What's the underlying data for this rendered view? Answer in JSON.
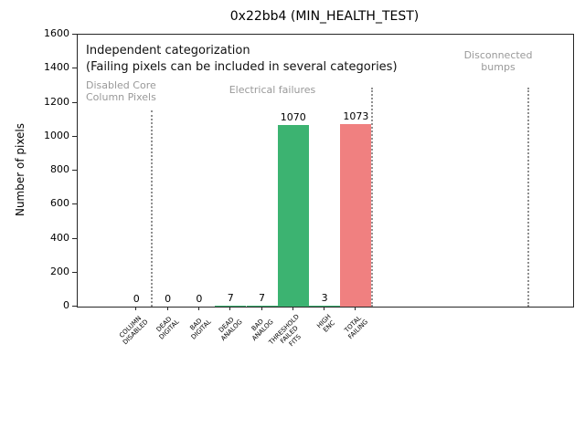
{
  "title": "0x22bb4 (MIN_HEALTH_TEST)",
  "annotations": {
    "independent": "Independent categorization",
    "failing_note": "(Failing pixels can be included in several categories)",
    "region_disabled_core": "Disabled Core\nColumn Pixels",
    "region_electrical": "Electrical failures",
    "region_disconnected": "Disconnected\nbumps"
  },
  "colors": {
    "bar_green": "#3cb371",
    "bar_red": "#f08080",
    "region_text": "#999999",
    "separator_gray": "#8f8f8f"
  },
  "chart_data": {
    "type": "bar",
    "title": "0x22bb4 (MIN_HEALTH_TEST)",
    "xlabel": "",
    "ylabel": "Number of pixels",
    "ylim": [
      0,
      1600
    ],
    "yticks": [
      0,
      200,
      400,
      600,
      800,
      1000,
      1200,
      1400,
      1600
    ],
    "grid": false,
    "legend": null,
    "categories": [
      "COLUMN\nDISABLED",
      "DEAD\nDIGITAL",
      "BAD\nDIGITAL",
      "DEAD\nANALOG",
      "BAD\nANALOG",
      "THRESHOLD\nFAILED\nFITS",
      "HIGH\nENC",
      "TOTAL\nFAILING"
    ],
    "values": [
      0,
      0,
      0,
      7,
      7,
      1070,
      3,
      1073
    ],
    "value_labels": [
      "0",
      "0",
      "0",
      "7",
      "7",
      "1070",
      "3",
      "1073"
    ],
    "bar_colors": [
      "#3cb371",
      "#3cb371",
      "#3cb371",
      "#3cb371",
      "#3cb371",
      "#3cb371",
      "#3cb371",
      "#f08080"
    ],
    "separator_positions": [
      0.5,
      7.5,
      12.5
    ],
    "region_labels": [
      "Disabled Core\nColumn Pixels",
      "Electrical failures",
      "Disconnected\nbumps"
    ]
  }
}
